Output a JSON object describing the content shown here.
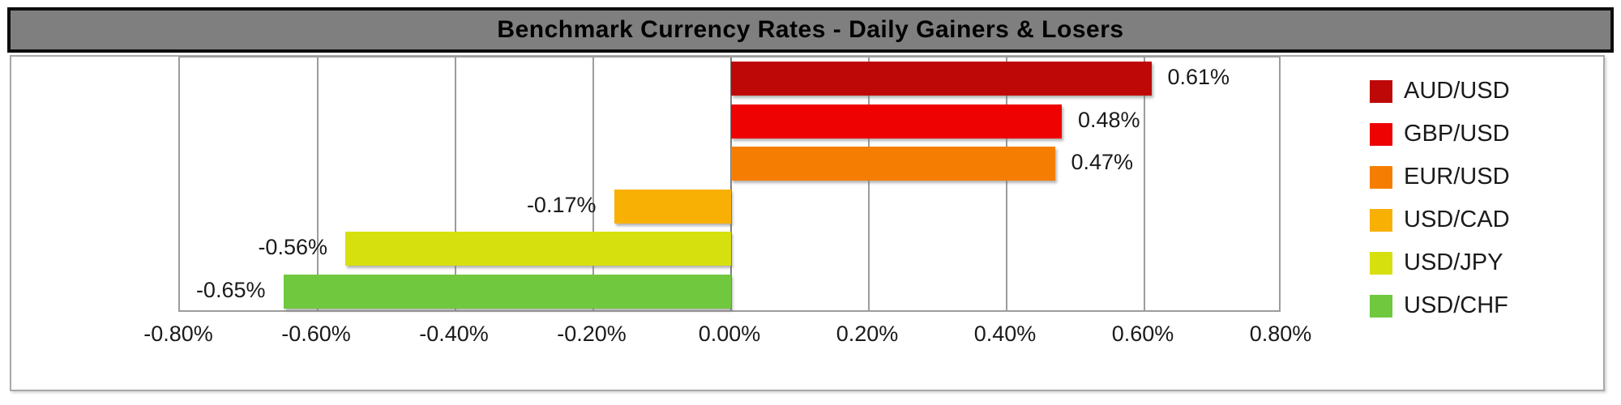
{
  "title": "Benchmark Currency Rates - Daily Gainers & Losers",
  "colors": {
    "title_bar_bg": "#7f7f7f",
    "title_bar_border": "#0c0c0c",
    "title_text": "#000000",
    "chart_area_border": "#a8a8a8",
    "gridline": "#9c9c9c",
    "zero_axis": "#7f7f7f",
    "text": "#1a1a1a"
  },
  "chart_data": {
    "type": "bar",
    "orientation": "horizontal",
    "title": "Benchmark Currency Rates - Daily Gainers & Losers",
    "grid": true,
    "series": [
      {
        "name": "AUD/USD",
        "value": 0.61,
        "data_label": "0.61%",
        "color": "#be0808"
      },
      {
        "name": "GBP/USD",
        "value": 0.48,
        "data_label": "0.48%",
        "color": "#ee0202"
      },
      {
        "name": "EUR/USD",
        "value": 0.47,
        "data_label": "0.47%",
        "color": "#f57e02"
      },
      {
        "name": "USD/CAD",
        "value": -0.17,
        "data_label": "-0.17%",
        "color": "#f9b005"
      },
      {
        "name": "USD/JPY",
        "value": -0.56,
        "data_label": "-0.56%",
        "color": "#d7e00f"
      },
      {
        "name": "USD/CHF",
        "value": -0.65,
        "data_label": "-0.65%",
        "color": "#70c83e"
      }
    ],
    "x_axis": {
      "min": -0.8,
      "max": 0.8,
      "step": 0.2,
      "tick_labels": [
        "-0.80%",
        "-0.60%",
        "-0.40%",
        "-0.20%",
        "0.00%",
        "0.20%",
        "0.40%",
        "0.60%",
        "0.80%"
      ]
    },
    "legend": {
      "position": "right",
      "entries": [
        "AUD/USD",
        "GBP/USD",
        "EUR/USD",
        "USD/CAD",
        "USD/JPY",
        "USD/CHF"
      ]
    }
  }
}
